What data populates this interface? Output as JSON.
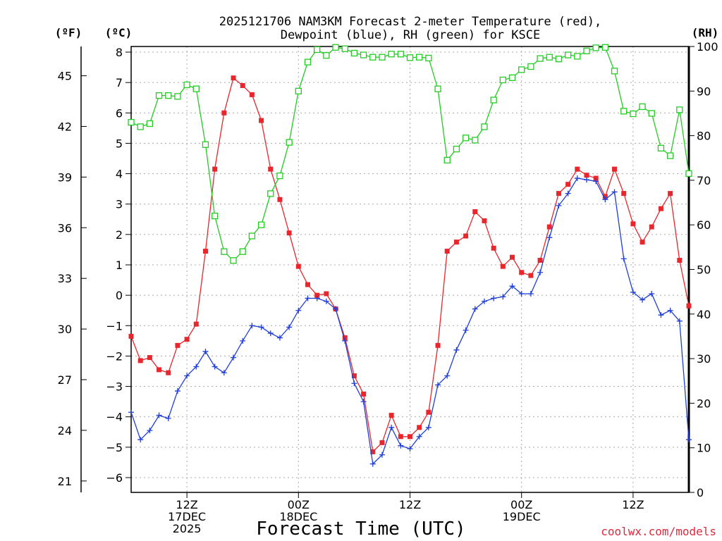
{
  "chart_data": {
    "type": "line",
    "title_line1": "2025121706 NAM3KM Forecast 2-meter Temperature (red),",
    "title_line2": "Dewpoint (blue), RH (green) for KSCE",
    "unit_left_f": "(ºF)",
    "unit_left_c": "(ºC)",
    "unit_right": "(RH)",
    "xlabel": "Forecast Time (UTC)",
    "watermark": "coolwx.com/models",
    "ylim_c": [
      -6.5,
      8.1
    ],
    "ylim_rh": [
      0,
      100
    ],
    "xlim_hours": [
      6,
      66
    ],
    "y_ticks_c": [
      -6,
      -5,
      -4,
      -3,
      -2,
      -1,
      0,
      1,
      2,
      3,
      4,
      5,
      6,
      7,
      8
    ],
    "y_ticks_f": [
      21,
      24,
      27,
      30,
      33,
      36,
      39,
      42,
      45
    ],
    "y_ticks_rh": [
      0,
      10,
      20,
      30,
      40,
      50,
      60,
      70,
      80,
      90,
      100
    ],
    "x_ticks": [
      {
        "hour": 12,
        "lines": [
          "12Z",
          "17DEC",
          "2025"
        ]
      },
      {
        "hour": 24,
        "lines": [
          "00Z",
          "18DEC"
        ]
      },
      {
        "hour": 36,
        "lines": [
          "12Z"
        ]
      },
      {
        "hour": 48,
        "lines": [
          "00Z",
          "19DEC"
        ]
      },
      {
        "hour": 60,
        "lines": [
          "12Z"
        ]
      }
    ],
    "x_hours": [
      6,
      7,
      8,
      9,
      10,
      11,
      12,
      13,
      14,
      15,
      16,
      17,
      18,
      19,
      20,
      21,
      22,
      23,
      24,
      25,
      26,
      27,
      28,
      29,
      30,
      31,
      32,
      33,
      34,
      35,
      36,
      37,
      38,
      39,
      40,
      41,
      42,
      43,
      44,
      45,
      46,
      47,
      48,
      49,
      50,
      51,
      52,
      53,
      54,
      55,
      56,
      57,
      58,
      59,
      60,
      61,
      62,
      63,
      64,
      65,
      66
    ],
    "series": [
      {
        "name": "Temperature",
        "color": "#e8262c",
        "marker": "filled-square",
        "axis": "C",
        "values": [
          -1.35,
          -2.15,
          -2.05,
          -2.45,
          -2.55,
          -1.65,
          -1.45,
          -0.95,
          1.45,
          4.15,
          6.0,
          7.15,
          6.9,
          6.6,
          5.75,
          4.15,
          3.15,
          2.05,
          0.95,
          0.35,
          0.0,
          0.05,
          -0.45,
          -1.4,
          -2.65,
          -3.25,
          -5.15,
          -4.85,
          -3.95,
          -4.65,
          -4.65,
          -4.35,
          -3.85,
          -1.65,
          1.45,
          1.75,
          1.95,
          2.75,
          2.45,
          1.55,
          0.95,
          1.25,
          0.75,
          0.65,
          1.15,
          2.25,
          3.35,
          3.65,
          4.15,
          3.95,
          3.85,
          3.25,
          4.15,
          3.35,
          2.35,
          1.75,
          2.25,
          2.85,
          3.35,
          1.15,
          -0.35
        ]
      },
      {
        "name": "Dewpoint",
        "color": "#1f3fd8",
        "marker": "plus",
        "axis": "C",
        "values": [
          -3.85,
          -4.75,
          -4.45,
          -3.95,
          -4.05,
          -3.15,
          -2.65,
          -2.35,
          -1.85,
          -2.35,
          -2.55,
          -2.05,
          -1.5,
          -1.0,
          -1.05,
          -1.25,
          -1.4,
          -1.05,
          -0.5,
          -0.1,
          -0.1,
          -0.2,
          -0.45,
          -1.5,
          -2.9,
          -3.5,
          -5.55,
          -5.25,
          -4.35,
          -4.95,
          -5.05,
          -4.65,
          -4.35,
          -2.95,
          -2.65,
          -1.8,
          -1.15,
          -0.45,
          -0.2,
          -0.1,
          -0.05,
          0.3,
          0.05,
          0.05,
          0.75,
          1.9,
          2.95,
          3.35,
          3.85,
          3.8,
          3.75,
          3.15,
          3.4,
          1.2,
          0.1,
          -0.15,
          0.05,
          -0.65,
          -0.5,
          -0.85,
          -4.75
        ]
      },
      {
        "name": "RH",
        "color": "#22cc22",
        "marker": "open-square",
        "axis": "RH",
        "values": [
          83,
          82,
          82.7,
          89,
          89,
          88.8,
          91.4,
          90.5,
          78,
          62,
          54,
          52,
          54,
          57.5,
          60,
          67,
          71,
          78.5,
          90,
          96.5,
          99.3,
          98,
          99.8,
          99.5,
          98.5,
          98.1,
          97.6,
          97.6,
          98.3,
          98.3,
          97.5,
          97.6,
          97.4,
          90.5,
          74.5,
          77,
          79.5,
          79,
          82,
          88,
          92.5,
          93,
          94.8,
          95.5,
          97.3,
          97.6,
          97.2,
          98.1,
          97.8,
          99,
          99.7,
          99.8,
          94.5,
          85.5,
          84.9,
          86.5,
          85,
          77.2,
          75.5,
          85.8,
          71.5
        ]
      }
    ]
  }
}
